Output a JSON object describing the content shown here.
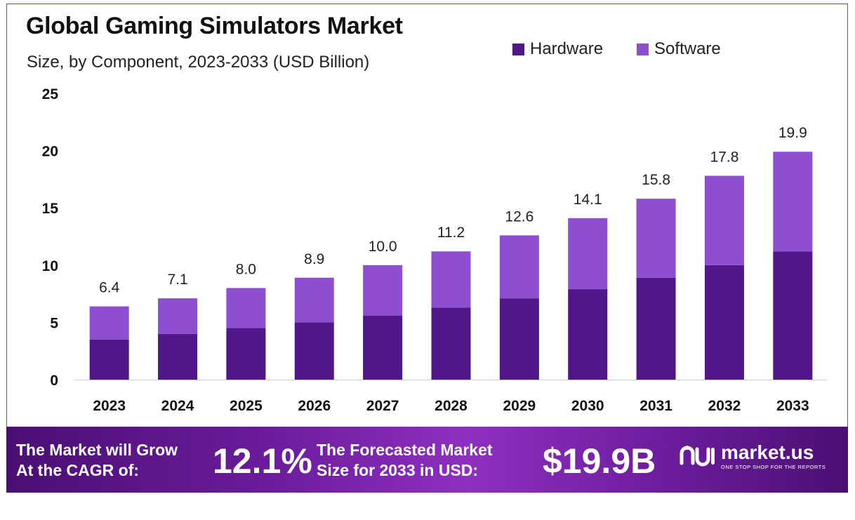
{
  "chart_data": {
    "type": "bar",
    "stacked": true,
    "title": "Global Gaming Simulators Market",
    "subtitle": "Size, by Component, 2023-2033 (USD Billion)",
    "categories": [
      "2023",
      "2024",
      "2025",
      "2026",
      "2027",
      "2028",
      "2029",
      "2030",
      "2031",
      "2032",
      "2033"
    ],
    "series": [
      {
        "name": "Hardware",
        "color": "#4f1787",
        "values": [
          3.5,
          4.0,
          4.5,
          5.0,
          5.6,
          6.3,
          7.1,
          7.9,
          8.9,
          10.0,
          11.2
        ]
      },
      {
        "name": "Software",
        "color": "#8d4fd0",
        "values": [
          2.9,
          3.1,
          3.5,
          3.9,
          4.4,
          4.9,
          5.5,
          6.2,
          6.9,
          7.8,
          8.7
        ]
      }
    ],
    "totals": [
      "6.4",
      "7.1",
      "8.0",
      "8.9",
      "10.0",
      "11.2",
      "12.6",
      "14.1",
      "15.8",
      "17.8",
      "19.9"
    ],
    "yticks": [
      "0",
      "5",
      "10",
      "15",
      "20",
      "25"
    ],
    "ylim": [
      0,
      25
    ],
    "xlabel": "",
    "ylabel": "",
    "legend_position": "top-right"
  },
  "banner": {
    "cagr_label_line1": "The Market will Grow",
    "cagr_label_line2": "At the CAGR of:",
    "cagr_value": "12.1%",
    "forecast_label_line1": "The Forecasted Market",
    "forecast_label_line2": "Size for 2033 in USD:",
    "forecast_value": "$19.9B",
    "logo_name": "market.us",
    "logo_tagline": "ONE STOP SHOP FOR THE REPORTS"
  }
}
